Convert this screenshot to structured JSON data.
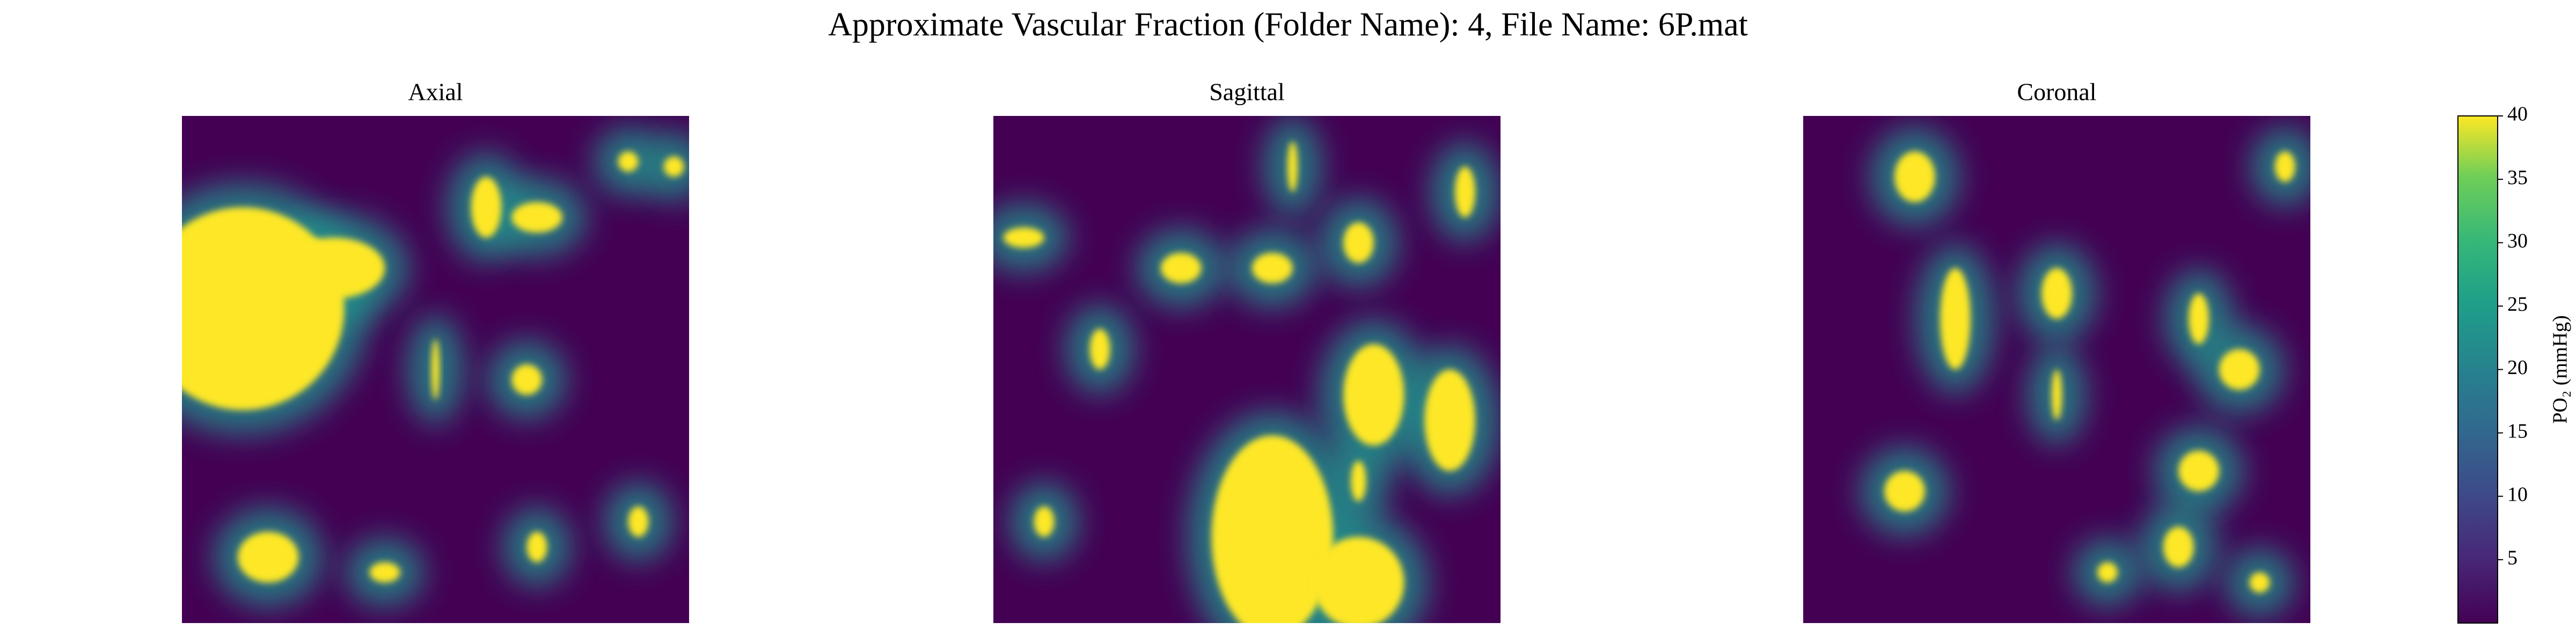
{
  "chart_data": {
    "type": "heatmap",
    "title": "Approximate Vascular Fraction (Folder Name): 4, File Name: 6P.mat",
    "panels": [
      {
        "title": "Axial"
      },
      {
        "title": "Sagittal"
      },
      {
        "title": "Coronal"
      }
    ],
    "colorbar": {
      "label": "PO₂ (mmHg)",
      "lim": [
        0,
        40
      ],
      "ticks": [
        5,
        10,
        15,
        20,
        25,
        30,
        35,
        40
      ]
    }
  }
}
